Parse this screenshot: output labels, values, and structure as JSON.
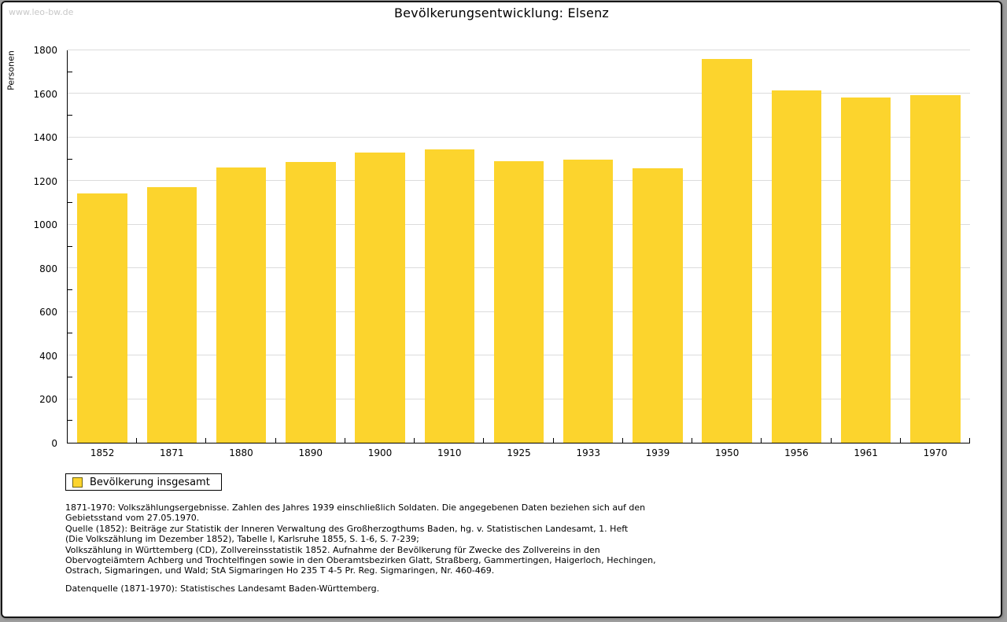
{
  "watermark": "www.leo-bw.de",
  "colors": {
    "bar": "#FCD42D",
    "grid": "#DCDCDC",
    "axis": "#000000",
    "watermark": "#C8C8C8"
  },
  "chart_data": {
    "type": "bar",
    "title": "Bevölkerungsentwicklung: Elsenz",
    "xlabel": "",
    "ylabel": "Personen",
    "categories": [
      "1852",
      "1871",
      "1880",
      "1890",
      "1900",
      "1910",
      "1925",
      "1933",
      "1939",
      "1950",
      "1956",
      "1961",
      "1970"
    ],
    "values": [
      1145,
      1171,
      1264,
      1289,
      1332,
      1344,
      1291,
      1300,
      1259,
      1762,
      1616,
      1584,
      1595
    ],
    "ylim": [
      0,
      1800
    ],
    "ytick_step": 200,
    "yminor_step": 100,
    "grid": true,
    "bar_color": "#FCD42D",
    "legend": [
      "Bevölkerung insgesamt"
    ],
    "legend_position": "bottom-left"
  },
  "footer": {
    "notes": "1871-1970: Volkszählungsergebnisse. Zahlen des Jahres 1939 einschließlich Soldaten. Die angegebenen Daten beziehen sich auf den\nGebietsstand vom 27.05.1970.\nQuelle (1852): Beiträge zur Statistik der Inneren Verwaltung des Großherzogthums Baden, hg. v. Statistischen Landesamt, 1. Heft\n(Die Volkszählung im Dezember 1852), Tabelle I, Karlsruhe 1855, S. 1-6, S. 7-239;\nVolkszählung in Württemberg (CD), Zollvereinsstatistik 1852. Aufnahme der Bevölkerung für Zwecke des Zollvereins in den\nObervogteiämtern Achberg und Trochtelfingen sowie in den Oberamtsbezirken Glatt, Straßberg, Gammertingen, Haigerloch, Hechingen,\nOstrach, Sigmaringen, und Wald; StA Sigmaringen Ho 235 T 4-5 Pr. Reg. Sigmaringen, Nr. 460-469.",
    "datasource": "Datenquelle (1871-1970): Statistisches Landesamt Baden-Württemberg."
  }
}
